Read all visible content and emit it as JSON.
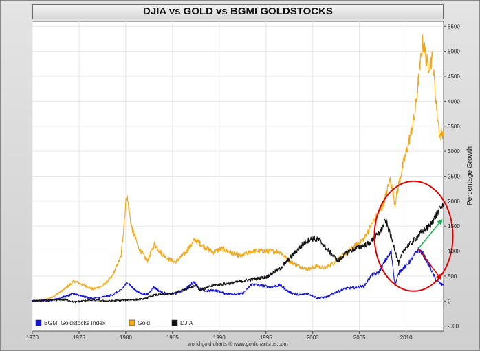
{
  "chart_data": {
    "type": "line",
    "title": "DJIA vs GOLD vs BGMI GOLDSTOCKS",
    "ylabel": "Percentage Growth",
    "credit": "world gold charts ® www.goldchartsrus.com",
    "xlim": [
      1970,
      2014
    ],
    "ylim": [
      -600,
      5600
    ],
    "x_ticks": [
      1970,
      1975,
      1980,
      1985,
      1990,
      1995,
      2000,
      2005,
      2010
    ],
    "y_ticks": [
      -500,
      0,
      500,
      1000,
      1500,
      2000,
      2500,
      3000,
      3500,
      4000,
      4500,
      5000,
      5500
    ],
    "grid": true,
    "legend_position": "bottom-left",
    "series": [
      {
        "name": "BGMI Goldstocks Index",
        "color": "#1414d2",
        "points": [
          [
            1970,
            0
          ],
          [
            1972,
            20
          ],
          [
            1973.5,
            90
          ],
          [
            1974.5,
            150
          ],
          [
            1975.5,
            90
          ],
          [
            1976.5,
            50
          ],
          [
            1977.5,
            80
          ],
          [
            1978.5,
            120
          ],
          [
            1979.5,
            220
          ],
          [
            1980.2,
            380
          ],
          [
            1980.8,
            250
          ],
          [
            1981.5,
            160
          ],
          [
            1982.3,
            130
          ],
          [
            1983,
            280
          ],
          [
            1983.6,
            200
          ],
          [
            1984.5,
            140
          ],
          [
            1985.3,
            150
          ],
          [
            1986.3,
            230
          ],
          [
            1987.3,
            390
          ],
          [
            1987.9,
            250
          ],
          [
            1988.6,
            200
          ],
          [
            1989.5,
            220
          ],
          [
            1990.5,
            160
          ],
          [
            1991.5,
            140
          ],
          [
            1992.5,
            150
          ],
          [
            1993.5,
            340
          ],
          [
            1994.5,
            310
          ],
          [
            1995.5,
            280
          ],
          [
            1996.5,
            320
          ],
          [
            1997.5,
            180
          ],
          [
            1998.5,
            120
          ],
          [
            1999.5,
            150
          ],
          [
            2000.5,
            60
          ],
          [
            2001.5,
            80
          ],
          [
            2002.5,
            180
          ],
          [
            2003.5,
            250
          ],
          [
            2004.5,
            270
          ],
          [
            2005.5,
            300
          ],
          [
            2006.3,
            520
          ],
          [
            2007,
            560
          ],
          [
            2007.8,
            820
          ],
          [
            2008.4,
            980
          ],
          [
            2008.8,
            330
          ],
          [
            2009.3,
            600
          ],
          [
            2010,
            700
          ],
          [
            2010.8,
            900
          ],
          [
            2011.3,
            1030
          ],
          [
            2011.8,
            950
          ],
          [
            2012.5,
            700
          ],
          [
            2013.2,
            420
          ],
          [
            2013.8,
            330
          ],
          [
            2014,
            340
          ]
        ]
      },
      {
        "name": "Gold",
        "color": "#f0a818",
        "points": [
          [
            1970,
            0
          ],
          [
            1971.5,
            30
          ],
          [
            1972.5,
            120
          ],
          [
            1973.5,
            250
          ],
          [
            1974.5,
            400
          ],
          [
            1975.5,
            320
          ],
          [
            1976.5,
            240
          ],
          [
            1977.5,
            300
          ],
          [
            1978.5,
            480
          ],
          [
            1979.5,
            900
          ],
          [
            1980.1,
            2150
          ],
          [
            1980.6,
            1500
          ],
          [
            1981.3,
            1100
          ],
          [
            1982.3,
            800
          ],
          [
            1983.1,
            1150
          ],
          [
            1983.6,
            1000
          ],
          [
            1984.5,
            850
          ],
          [
            1985.3,
            780
          ],
          [
            1986.3,
            950
          ],
          [
            1987.4,
            1230
          ],
          [
            1988.3,
            1100
          ],
          [
            1989.3,
            980
          ],
          [
            1990.3,
            1050
          ],
          [
            1991.3,
            970
          ],
          [
            1992.3,
            900
          ],
          [
            1993.5,
            1000
          ],
          [
            1994.5,
            1000
          ],
          [
            1995.5,
            1000
          ],
          [
            1996.5,
            990
          ],
          [
            1997.5,
            800
          ],
          [
            1998.5,
            700
          ],
          [
            1999.5,
            640
          ],
          [
            2000.5,
            700
          ],
          [
            2001.3,
            660
          ],
          [
            2002.5,
            800
          ],
          [
            2003.5,
            950
          ],
          [
            2004.5,
            1100
          ],
          [
            2005.5,
            1250
          ],
          [
            2006.5,
            1600
          ],
          [
            2007.5,
            1900
          ],
          [
            2008.3,
            2450
          ],
          [
            2008.8,
            1950
          ],
          [
            2009.5,
            2600
          ],
          [
            2010.3,
            3200
          ],
          [
            2010.9,
            3700
          ],
          [
            2011.6,
            4900
          ],
          [
            2011.8,
            5200
          ],
          [
            2012.3,
            4700
          ],
          [
            2012.8,
            4850
          ],
          [
            2013.3,
            3800
          ],
          [
            2013.6,
            3300
          ],
          [
            2014,
            3400
          ]
        ]
      },
      {
        "name": "DJIA",
        "color": "#111111",
        "points": [
          [
            1970,
            0
          ],
          [
            1972,
            20
          ],
          [
            1973.5,
            30
          ],
          [
            1974.5,
            -20
          ],
          [
            1976,
            20
          ],
          [
            1978,
            0
          ],
          [
            1980,
            20
          ],
          [
            1982,
            40
          ],
          [
            1983,
            120
          ],
          [
            1985,
            150
          ],
          [
            1987.6,
            320
          ],
          [
            1987.9,
            220
          ],
          [
            1989.5,
            320
          ],
          [
            1991,
            350
          ],
          [
            1993,
            420
          ],
          [
            1995,
            480
          ],
          [
            1996.5,
            650
          ],
          [
            1998,
            950
          ],
          [
            1999.3,
            1200
          ],
          [
            2000,
            1250
          ],
          [
            2000.7,
            1220
          ],
          [
            2001.5,
            1050
          ],
          [
            2002.7,
            800
          ],
          [
            2003.5,
            950
          ],
          [
            2004.5,
            1050
          ],
          [
            2006,
            1150
          ],
          [
            2007.3,
            1400
          ],
          [
            2007.8,
            1620
          ],
          [
            2008.7,
            1100
          ],
          [
            2009.2,
            750
          ],
          [
            2009.8,
            1050
          ],
          [
            2010.5,
            1150
          ],
          [
            2011.5,
            1350
          ],
          [
            2012.5,
            1500
          ],
          [
            2013.3,
            1750
          ],
          [
            2014,
            1950
          ]
        ]
      }
    ],
    "annotations": [
      {
        "type": "circle",
        "color": "#e00000",
        "center": [
          2010.8,
          1300
        ],
        "radius_x_years": 4.2,
        "radius_y": 1100
      },
      {
        "type": "arrow",
        "color": "#17b050",
        "from": [
          2011.3,
          1050
        ],
        "to": [
          2013.8,
          1620
        ]
      },
      {
        "type": "arrow",
        "color": "#e00000",
        "from": [
          2011.3,
          1050
        ],
        "to": [
          2013.7,
          450
        ]
      }
    ]
  }
}
